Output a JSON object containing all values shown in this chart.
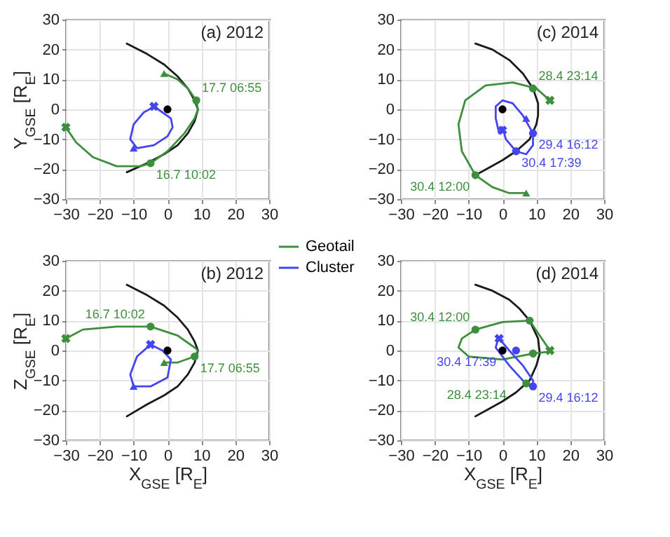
{
  "chart_data": [
    {
      "type": "line",
      "title": "(a) 2012",
      "ylabel": "Y$_{GSE}$ [R$_{E}$]",
      "xlim": [
        -30,
        30
      ],
      "ylim": [
        -30,
        30
      ],
      "xticks": [
        -30,
        -20,
        -10,
        0,
        10,
        20,
        30
      ],
      "yticks": [
        -30,
        -20,
        -10,
        0,
        10,
        20,
        30
      ],
      "grid": true,
      "legend": "bottom right",
      "series": [
        {
          "type": "line",
          "color": "#1a1a1a",
          "x": [
            -12,
            -6,
            -1,
            3,
            6,
            8,
            9,
            8,
            6,
            3,
            -1,
            -6,
            -12
          ],
          "values": [
            22,
            18.5,
            15,
            11,
            7,
            3,
            0,
            -4,
            -8,
            -12,
            -15,
            -18,
            -21
          ]
        },
        {
          "type": "line",
          "name": "Geotail",
          "color": "#3d8f3d",
          "x": [
            -30,
            -27,
            -22,
            -15,
            -8,
            -5,
            0,
            5,
            8,
            9,
            8.5,
            6,
            3,
            -1
          ],
          "values": [
            -6,
            -11,
            -16,
            -19,
            -19,
            -18,
            -14,
            -8,
            -3,
            0,
            3,
            7,
            10,
            12
          ]
        },
        {
          "type": "line",
          "name": "Cluster",
          "color": "#4545f0",
          "x": [
            -4,
            -1.5,
            1,
            1.5,
            0,
            -4,
            -9,
            -11,
            -10,
            -7,
            -4.5
          ],
          "values": [
            1,
            -1,
            -3,
            -6,
            -9,
            -12,
            -13,
            -10,
            -5,
            -1,
            0.5
          ]
        },
        {
          "type": "scatter",
          "marker": "circle",
          "color": "#000000",
          "x": [
            0
          ],
          "values": [
            0
          ]
        },
        {
          "type": "scatter",
          "marker": "circle",
          "color": "#3d8f3d",
          "x": [
            -5,
            8.5
          ],
          "values": [
            -18,
            3
          ]
        },
        {
          "type": "scatter",
          "marker": "triangle",
          "color": "#3d8f3d",
          "x": [
            -1
          ],
          "values": [
            12
          ]
        },
        {
          "type": "scatter",
          "marker": "cross",
          "color": "#3d8f3d",
          "x": [
            -30
          ],
          "values": [
            -6
          ]
        },
        {
          "type": "scatter",
          "marker": "triangle",
          "color": "#4545f0",
          "x": [
            -10
          ],
          "values": [
            -13
          ]
        },
        {
          "type": "scatter",
          "marker": "cross",
          "color": "#4545f0",
          "x": [
            -4
          ],
          "values": [
            1
          ]
        }
      ],
      "annotations": [
        {
          "text": "17.7 06:55",
          "x": 8.5,
          "y": 3
        },
        {
          "text": "16.7 10:02",
          "x": -5,
          "y": -18
        }
      ]
    },
    {
      "type": "line",
      "title": "(c) 2014",
      "xlim": [
        -30,
        30
      ],
      "ylim": [
        -30,
        30
      ],
      "xticks": [
        -30,
        -20,
        -10,
        0,
        10,
        20,
        30
      ],
      "yticks": [
        -30,
        -20,
        -10,
        0,
        10,
        20,
        30
      ],
      "grid": true,
      "series": [
        {
          "type": "line",
          "color": "#1a1a1a",
          "x": [
            -8,
            -3,
            2,
            6,
            9,
            10.5,
            10.5,
            10,
            8,
            4,
            0,
            -4,
            -8
          ],
          "values": [
            22,
            20,
            16.5,
            12,
            7,
            2,
            -2,
            -5,
            -10,
            -14,
            -17,
            -19.5,
            -22
          ]
        },
        {
          "type": "line",
          "color": "#3d8f3d",
          "x": [
            14,
            10,
            3,
            -5,
            -11,
            -13,
            -12,
            -8,
            -3,
            2,
            7
          ],
          "values": [
            3,
            7,
            9,
            8,
            3,
            -5,
            -14,
            -22,
            -26,
            -28,
            -28
          ]
        },
        {
          "type": "line",
          "color": "#4545f0",
          "x": [
            -1,
            -2,
            -2,
            0,
            3,
            6,
            8,
            9,
            9,
            7,
            4,
            1,
            0
          ],
          "values": [
            -8,
            -3,
            1,
            3,
            2,
            -2,
            -6,
            -8,
            -12,
            -15,
            -14,
            -10,
            -6
          ]
        },
        {
          "type": "scatter",
          "marker": "circle",
          "color": "#000000",
          "x": [
            0
          ],
          "values": [
            0
          ]
        },
        {
          "type": "scatter",
          "marker": "circle",
          "color": "#3d8f3d",
          "x": [
            9,
            -8
          ],
          "values": [
            7,
            -22
          ]
        },
        {
          "type": "scatter",
          "marker": "triangle",
          "color": "#3d8f3d",
          "x": [
            7
          ],
          "values": [
            -28
          ]
        },
        {
          "type": "scatter",
          "marker": "cross",
          "color": "#3d8f3d",
          "x": [
            14
          ],
          "values": [
            3
          ]
        },
        {
          "type": "scatter",
          "marker": "circle",
          "color": "#4545f0",
          "x": [
            9,
            4
          ],
          "values": [
            -8,
            -14
          ]
        },
        {
          "type": "scatter",
          "marker": "triangle",
          "color": "#4545f0",
          "x": [
            7
          ],
          "values": [
            -3
          ]
        },
        {
          "type": "scatter",
          "marker": "cross",
          "color": "#4545f0",
          "x": [
            0
          ],
          "values": [
            -7
          ]
        }
      ],
      "annotations": [
        {
          "text": "28.4 23:14",
          "x": 9,
          "y": 7
        },
        {
          "text": "29.4 16:12",
          "x": 9,
          "y": -8
        },
        {
          "text": "30.4 17:39",
          "x": 4,
          "y": -14
        },
        {
          "text": "30.4 12:00",
          "x": -8,
          "y": -22
        }
      ]
    },
    {
      "type": "line",
      "title": "(b) 2012",
      "xlabel": "X$_{GSE}$ [R$_{E}$]",
      "ylabel": "Z$_{GSE}$ [R$_{E}$]",
      "xlim": [
        -30,
        30
      ],
      "ylim": [
        -30,
        30
      ],
      "xticks": [
        -30,
        -20,
        -10,
        0,
        10,
        20,
        30
      ],
      "yticks": [
        -30,
        -20,
        -10,
        0,
        10,
        20,
        30
      ],
      "grid": true,
      "series": [
        {
          "type": "line",
          "color": "#1a1a1a",
          "x": [
            -12,
            -6,
            -1,
            3,
            6,
            8,
            9,
            8,
            6,
            3,
            -1,
            -6,
            -12
          ],
          "values": [
            22,
            18.5,
            15,
            11,
            7,
            3,
            0,
            -4,
            -8,
            -12,
            -15,
            -18,
            -22
          ]
        },
        {
          "type": "line",
          "color": "#3d8f3d",
          "x": [
            -30,
            -25,
            -15,
            -5,
            3,
            8,
            9,
            8,
            3,
            -1
          ],
          "values": [
            4,
            7,
            8,
            8,
            5,
            1,
            0,
            -2,
            -4,
            -4
          ]
        },
        {
          "type": "line",
          "color": "#4545f0",
          "x": [
            -5,
            -1.5,
            1,
            0,
            -5,
            -10,
            -11,
            -9,
            -5.5
          ],
          "values": [
            2,
            0,
            -3,
            -9,
            -12,
            -12,
            -8,
            -2,
            1.5
          ]
        },
        {
          "type": "scatter",
          "marker": "circle",
          "color": "#000000",
          "x": [
            0
          ],
          "values": [
            0
          ]
        },
        {
          "type": "scatter",
          "marker": "circle",
          "color": "#3d8f3d",
          "x": [
            -5,
            8
          ],
          "values": [
            8,
            -2
          ]
        },
        {
          "type": "scatter",
          "marker": "triangle",
          "color": "#3d8f3d",
          "x": [
            -1
          ],
          "values": [
            -4
          ]
        },
        {
          "type": "scatter",
          "marker": "cross",
          "color": "#3d8f3d",
          "x": [
            -30
          ],
          "values": [
            4
          ]
        },
        {
          "type": "scatter",
          "marker": "triangle",
          "color": "#4545f0",
          "x": [
            -10
          ],
          "values": [
            -12
          ]
        },
        {
          "type": "scatter",
          "marker": "cross",
          "color": "#4545f0",
          "x": [
            -5
          ],
          "values": [
            2
          ]
        }
      ],
      "annotations": [
        {
          "text": "16.7 10:02",
          "x": -5,
          "y": 8
        },
        {
          "text": "17.7 06:55",
          "x": 8,
          "y": -2
        }
      ]
    },
    {
      "type": "line",
      "title": "(d) 2014",
      "xlabel": "X$_{GSE}$ [R$_{E}$]",
      "xlim": [
        -30,
        30
      ],
      "ylim": [
        -30,
        30
      ],
      "xticks": [
        -30,
        -20,
        -10,
        0,
        10,
        20,
        30
      ],
      "yticks": [
        -30,
        -20,
        -10,
        0,
        10,
        20,
        30
      ],
      "grid": true,
      "series": [
        {
          "type": "line",
          "color": "#1a1a1a",
          "x": [
            -8,
            -3,
            2,
            5,
            8,
            10.5,
            11,
            10,
            8,
            4,
            0,
            -4,
            -8
          ],
          "values": [
            22,
            20,
            17,
            14,
            10,
            4,
            -1,
            -5,
            -10,
            -14,
            -17,
            -19.5,
            -22
          ]
        },
        {
          "type": "line",
          "color": "#3d8f3d",
          "x": [
            14,
            8,
            0,
            -8,
            -12,
            -13,
            -10,
            0,
            9,
            13
          ],
          "values": [
            0,
            10,
            9.5,
            7,
            4,
            1,
            -2,
            -3,
            -1,
            -0.5
          ]
        },
        {
          "type": "line",
          "color": "#4545f0",
          "x": [
            -1,
            2,
            6,
            9,
            9,
            6,
            2,
            -2,
            -1.5
          ],
          "values": [
            4,
            0,
            -5,
            -10,
            -12,
            -10,
            -5,
            1,
            3
          ]
        },
        {
          "type": "scatter",
          "marker": "circle",
          "color": "#000000",
          "x": [
            0
          ],
          "values": [
            0
          ]
        },
        {
          "type": "scatter",
          "marker": "circle",
          "color": "#3d8f3d",
          "x": [
            -8,
            8,
            9,
            7
          ],
          "values": [
            7,
            10,
            -1,
            -11
          ]
        },
        {
          "type": "scatter",
          "marker": "cross",
          "color": "#3d8f3d",
          "x": [
            14
          ],
          "values": [
            0
          ]
        },
        {
          "type": "scatter",
          "marker": "circle",
          "color": "#4545f0",
          "x": [
            4,
            9
          ],
          "values": [
            0,
            -12
          ]
        },
        {
          "type": "scatter",
          "marker": "cross",
          "color": "#4545f0",
          "x": [
            -1
          ],
          "values": [
            4
          ]
        }
      ],
      "annotations": [
        {
          "text": "30.4 12:00",
          "x": -8,
          "y": 7
        },
        {
          "text": "30.4 17:39",
          "x": 4,
          "y": 0
        },
        {
          "text": "28.4 23:14",
          "x": 7,
          "y": -11
        },
        {
          "text": "29.4 16:12",
          "x": 9,
          "y": -12
        }
      ]
    }
  ]
}
